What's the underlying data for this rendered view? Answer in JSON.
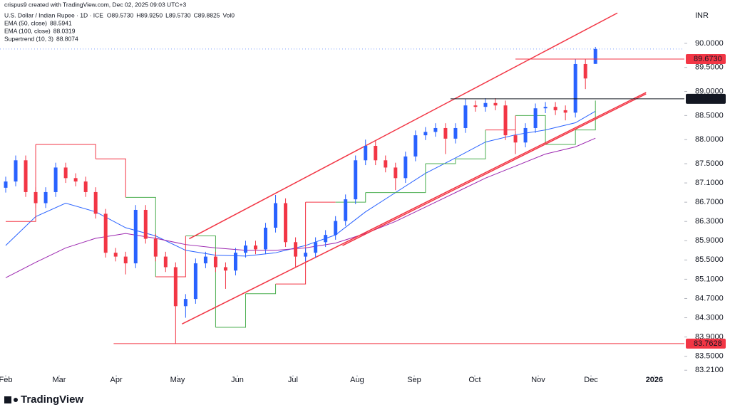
{
  "chart_data": {
    "type": "candlestick",
    "header": "crispus9 created with TradingView.com, Dec 02, 2025 09:03 UTC+3",
    "title": "U.S. Dollar / Indian Rupee · 1D · ICE",
    "quote": [
      "O89.5730",
      "H89.9250",
      "L89.5730",
      "C89.8825",
      "Vol0"
    ],
    "currency": "INR",
    "brand": "TradingView",
    "up_color": "#2962ff",
    "down_color": "#f23645",
    "x": [
      0,
      1,
      2,
      3,
      4,
      5,
      6,
      7,
      8,
      9,
      10,
      11,
      12,
      13,
      14,
      15,
      16,
      17,
      18,
      19,
      20,
      21,
      22,
      23,
      24,
      25,
      26,
      27,
      28,
      29,
      30,
      31,
      32,
      33,
      34,
      35,
      36,
      37,
      38,
      39,
      40,
      41,
      42,
      43,
      44,
      45,
      46,
      47,
      48,
      49,
      50,
      51,
      52,
      53,
      54,
      55,
      56,
      57,
      58,
      59
    ],
    "open": [
      87.0,
      87.13,
      87.57,
      86.91,
      86.68,
      86.91,
      87.42,
      87.2,
      87.13,
      86.91,
      86.46,
      85.65,
      85.57,
      85.43,
      86.54,
      85.94,
      85.57,
      85.35,
      84.54,
      84.69,
      85.43,
      85.57,
      85.35,
      85.28,
      85.65,
      85.8,
      85.72,
      86.17,
      86.68,
      85.87,
      85.57,
      85.65,
      85.87,
      86.02,
      86.31,
      86.76,
      87.57,
      87.87,
      87.57,
      87.42,
      87.2,
      87.65,
      88.09,
      88.16,
      88.24,
      88.02,
      88.24,
      88.71,
      88.68,
      88.76,
      88.71,
      88.09,
      87.94,
      88.24,
      88.65,
      88.68,
      88.61,
      88.56,
      89.57,
      89.573
    ],
    "high": [
      87.23,
      87.67,
      87.67,
      87.01,
      87.01,
      87.52,
      87.52,
      87.3,
      87.23,
      87.01,
      86.56,
      85.75,
      85.67,
      86.64,
      86.64,
      86.04,
      85.67,
      85.45,
      84.79,
      85.53,
      85.67,
      85.67,
      85.45,
      85.75,
      85.9,
      85.9,
      86.27,
      86.85,
      86.78,
      85.97,
      85.75,
      85.97,
      86.12,
      86.41,
      86.86,
      87.67,
      88.0,
      87.97,
      87.67,
      87.52,
      87.75,
      88.19,
      88.26,
      88.34,
      88.34,
      88.34,
      88.85,
      88.81,
      88.86,
      88.86,
      88.81,
      88.19,
      88.34,
      88.75,
      88.78,
      88.78,
      88.71,
      89.67,
      89.67,
      89.925
    ],
    "low": [
      86.9,
      87.03,
      86.81,
      86.58,
      86.58,
      86.81,
      87.1,
      87.03,
      86.81,
      86.36,
      85.55,
      85.47,
      85.2,
      85.33,
      85.84,
      85.47,
      85.25,
      83.76,
      84.3,
      84.59,
      85.33,
      85.25,
      84.9,
      85.18,
      85.55,
      85.62,
      85.62,
      86.07,
      85.77,
      85.35,
      85.47,
      85.55,
      85.77,
      85.92,
      86.21,
      86.66,
      87.47,
      87.47,
      87.32,
      86.95,
      87.1,
      87.55,
      87.99,
      88.06,
      87.7,
      87.92,
      88.14,
      88.58,
      88.58,
      88.61,
      87.99,
      87.7,
      87.84,
      88.14,
      88.55,
      88.51,
      88.4,
      88.46,
      89.05,
      89.573
    ],
    "close": [
      87.13,
      87.57,
      86.91,
      86.68,
      86.91,
      87.42,
      87.2,
      87.13,
      86.91,
      86.46,
      85.65,
      85.57,
      85.43,
      86.54,
      85.94,
      85.57,
      85.35,
      84.54,
      84.69,
      85.43,
      85.57,
      85.35,
      85.28,
      85.65,
      85.8,
      85.72,
      86.17,
      86.68,
      85.87,
      85.57,
      85.65,
      85.87,
      86.02,
      86.31,
      86.76,
      87.57,
      87.87,
      87.57,
      87.42,
      87.2,
      87.65,
      88.09,
      88.16,
      88.24,
      88.02,
      88.24,
      88.71,
      88.68,
      88.76,
      88.71,
      88.09,
      87.94,
      88.24,
      88.65,
      88.68,
      88.61,
      88.56,
      89.57,
      89.27,
      89.8825
    ],
    "last_price_color": "#2962ff",
    "indicators": [
      {
        "name": "EMA (50, close)",
        "last_label": "88.5941",
        "color": "#2962ff",
        "x": [
          0,
          3,
          6,
          9,
          12,
          15,
          18,
          21,
          24,
          27,
          30,
          33,
          36,
          39,
          42,
          45,
          48,
          51,
          54,
          57,
          59
        ],
        "values": [
          85.8,
          86.4,
          86.68,
          86.5,
          86.17,
          86.0,
          85.7,
          85.6,
          85.58,
          85.65,
          85.8,
          86.02,
          86.5,
          86.9,
          87.3,
          87.62,
          87.95,
          88.1,
          88.2,
          88.35,
          88.59
        ]
      },
      {
        "name": "EMA (100, close)",
        "last_label": "88.0319",
        "color": "#9c27b0",
        "x": [
          0,
          3,
          6,
          9,
          12,
          15,
          18,
          21,
          24,
          27,
          30,
          33,
          36,
          39,
          42,
          45,
          48,
          51,
          54,
          57,
          59
        ],
        "values": [
          85.13,
          85.45,
          85.75,
          85.95,
          86.05,
          85.95,
          85.82,
          85.75,
          85.7,
          85.7,
          85.75,
          85.85,
          86.05,
          86.3,
          86.6,
          86.9,
          87.2,
          87.45,
          87.7,
          87.85,
          88.03
        ]
      },
      {
        "name": "Supertrend (10, 3)",
        "last_label": "88.8074",
        "color": "#4caf50",
        "down_color": "#f23645",
        "x": [
          0,
          3,
          6,
          9,
          12,
          15,
          18,
          21,
          24,
          27,
          30,
          33,
          36,
          39,
          42,
          45,
          48,
          51,
          54,
          57,
          59
        ],
        "values": [
          86.3,
          87.9,
          87.9,
          87.6,
          86.8,
          85.15,
          86.0,
          84.1,
          84.8,
          85.0,
          86.7,
          86.7,
          86.9,
          86.9,
          87.5,
          87.6,
          88.2,
          88.5,
          87.9,
          88.2,
          88.81
        ]
      }
    ],
    "trendlines": [
      {
        "color": "#f23645",
        "x": [
          18.36,
          61.2
        ],
        "values": [
          85.94,
          90.63
        ]
      },
      {
        "color": "#f23645",
        "x": [
          17.64,
          64.07
        ],
        "values": [
          84.17,
          88.98
        ]
      },
      {
        "color": "#f23645",
        "x": [
          33.7,
          64.07
        ],
        "values": [
          85.8,
          88.95
        ]
      }
    ],
    "levels": [
      {
        "value": 89.673,
        "label": "89.6730",
        "color": "#f23645",
        "x_start": 51
      },
      {
        "value": 88.8474,
        "label": "88.8474",
        "color": "#131722",
        "x_start": 44.5
      },
      {
        "value": 83.7628,
        "label": "83.7628",
        "color": "#f23645",
        "x_start": 10.8
      }
    ],
    "xlim": [
      -0.57,
      67.9
    ],
    "ylim": [
      83.14,
      90.9
    ],
    "xticks": [
      {
        "value": 0,
        "label": "Feb"
      },
      {
        "value": 5.35,
        "label": "Mar"
      },
      {
        "value": 11.06,
        "label": "Apr"
      },
      {
        "value": 17.19,
        "label": "May"
      },
      {
        "value": 23.18,
        "label": "Jun"
      },
      {
        "value": 28.74,
        "label": "Jul"
      },
      {
        "value": 35.16,
        "label": "Aug"
      },
      {
        "value": 40.87,
        "label": "Sep"
      },
      {
        "value": 46.93,
        "label": "Oct"
      },
      {
        "value": 53.28,
        "label": "Nov"
      },
      {
        "value": 58.56,
        "label": "Dec"
      },
      {
        "value": 64.9,
        "label": "2026"
      }
    ],
    "yticks": [
      {
        "value": 90,
        "label": "90.0000"
      },
      {
        "value": 89.5,
        "label": "89.5000"
      },
      {
        "value": 89,
        "label": "89.0000"
      },
      {
        "value": 88.5,
        "label": "88.5000"
      },
      {
        "value": 88,
        "label": "88.0000"
      },
      {
        "value": 87.5,
        "label": "87.5000"
      },
      {
        "value": 87.1,
        "label": "87.1000"
      },
      {
        "value": 86.7,
        "label": "86.7000"
      },
      {
        "value": 86.3,
        "label": "86.3000"
      },
      {
        "value": 85.9,
        "label": "85.9000"
      },
      {
        "value": 85.5,
        "label": "85.5000"
      },
      {
        "value": 85.1,
        "label": "85.1000"
      },
      {
        "value": 84.7,
        "label": "84.7000"
      },
      {
        "value": 84.3,
        "label": "84.3000"
      },
      {
        "value": 83.9,
        "label": "83.9000"
      },
      {
        "value": 83.5,
        "label": "83.5000"
      },
      {
        "value": 83.21,
        "label": "83.2100"
      }
    ]
  }
}
